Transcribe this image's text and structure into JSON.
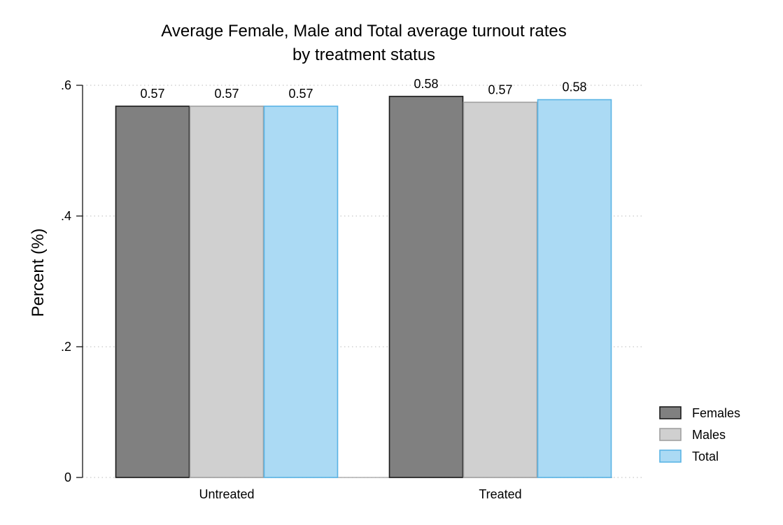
{
  "chart_data": {
    "type": "bar",
    "title": "Average Female, Male and Total average turnout rates",
    "subtitle": "by treatment status",
    "xlabel": "",
    "ylabel": "Percent (%)",
    "ylim": [
      0,
      0.6
    ],
    "yticks": [
      0,
      0.2,
      0.4,
      0.6
    ],
    "ytick_labels": [
      "0",
      ".2",
      ".4",
      ".6"
    ],
    "categories": [
      "Untreated",
      "Treated"
    ],
    "series": [
      {
        "name": "Females",
        "values": [
          0.568,
          0.583
        ],
        "labels": [
          "0.57",
          "0.58"
        ],
        "fill": "#808080",
        "stroke": "#1a1a1a"
      },
      {
        "name": "Males",
        "values": [
          0.568,
          0.574
        ],
        "labels": [
          "0.57",
          "0.57"
        ],
        "fill": "#d0d0d0",
        "stroke": "#a0a0a0"
      },
      {
        "name": "Total",
        "values": [
          0.568,
          0.578
        ],
        "labels": [
          "0.57",
          "0.58"
        ],
        "fill": "#abdaf4",
        "stroke": "#5ab4e5"
      }
    ],
    "grid": true,
    "legend_position": "bottom-right"
  }
}
